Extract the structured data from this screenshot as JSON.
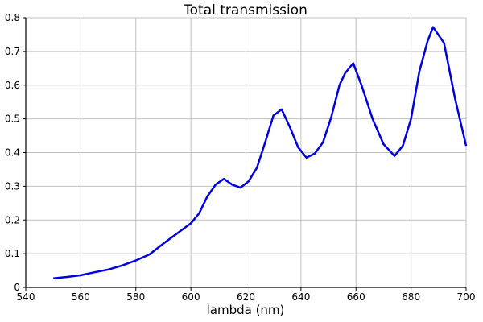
{
  "chart_data": {
    "type": "line",
    "title": "Total transmission",
    "xlabel": "lambda (nm)",
    "ylabel": "",
    "xlim": [
      540,
      700
    ],
    "ylim": [
      0,
      0.8
    ],
    "xticks": [
      540,
      560,
      580,
      600,
      620,
      640,
      660,
      680,
      700
    ],
    "xtick_labels": [
      "540",
      "560",
      "580",
      "600",
      "620",
      "640",
      "660",
      "680",
      "700"
    ],
    "yticks": [
      0,
      0.1,
      0.2,
      0.3,
      0.4,
      0.5,
      0.6,
      0.7,
      0.8
    ],
    "ytick_labels": [
      "0",
      "0.1",
      "0.2",
      "0.3",
      "0.4",
      "0.5",
      "0.6",
      "0.7",
      "0.8"
    ],
    "grid": true,
    "legend": null,
    "series": [
      {
        "name": "Total transmission",
        "color": "#0000e0",
        "x": [
          550,
          555,
          560,
          565,
          570,
          575,
          580,
          585,
          590,
          595,
          600,
          603,
          606,
          609,
          612,
          615,
          618,
          621,
          624,
          627,
          630,
          633,
          636,
          639,
          642,
          645,
          648,
          651,
          654,
          656,
          659,
          662,
          666,
          670,
          674,
          677,
          680,
          683,
          686,
          688,
          692,
          696,
          700
        ],
        "y": [
          0.027,
          0.031,
          0.036,
          0.045,
          0.053,
          0.065,
          0.08,
          0.098,
          0.13,
          0.16,
          0.19,
          0.22,
          0.27,
          0.305,
          0.322,
          0.305,
          0.296,
          0.315,
          0.355,
          0.43,
          0.51,
          0.528,
          0.475,
          0.415,
          0.385,
          0.397,
          0.43,
          0.505,
          0.6,
          0.635,
          0.665,
          0.6,
          0.5,
          0.425,
          0.39,
          0.42,
          0.5,
          0.64,
          0.73,
          0.772,
          0.725,
          0.56,
          0.42
        ]
      }
    ]
  }
}
